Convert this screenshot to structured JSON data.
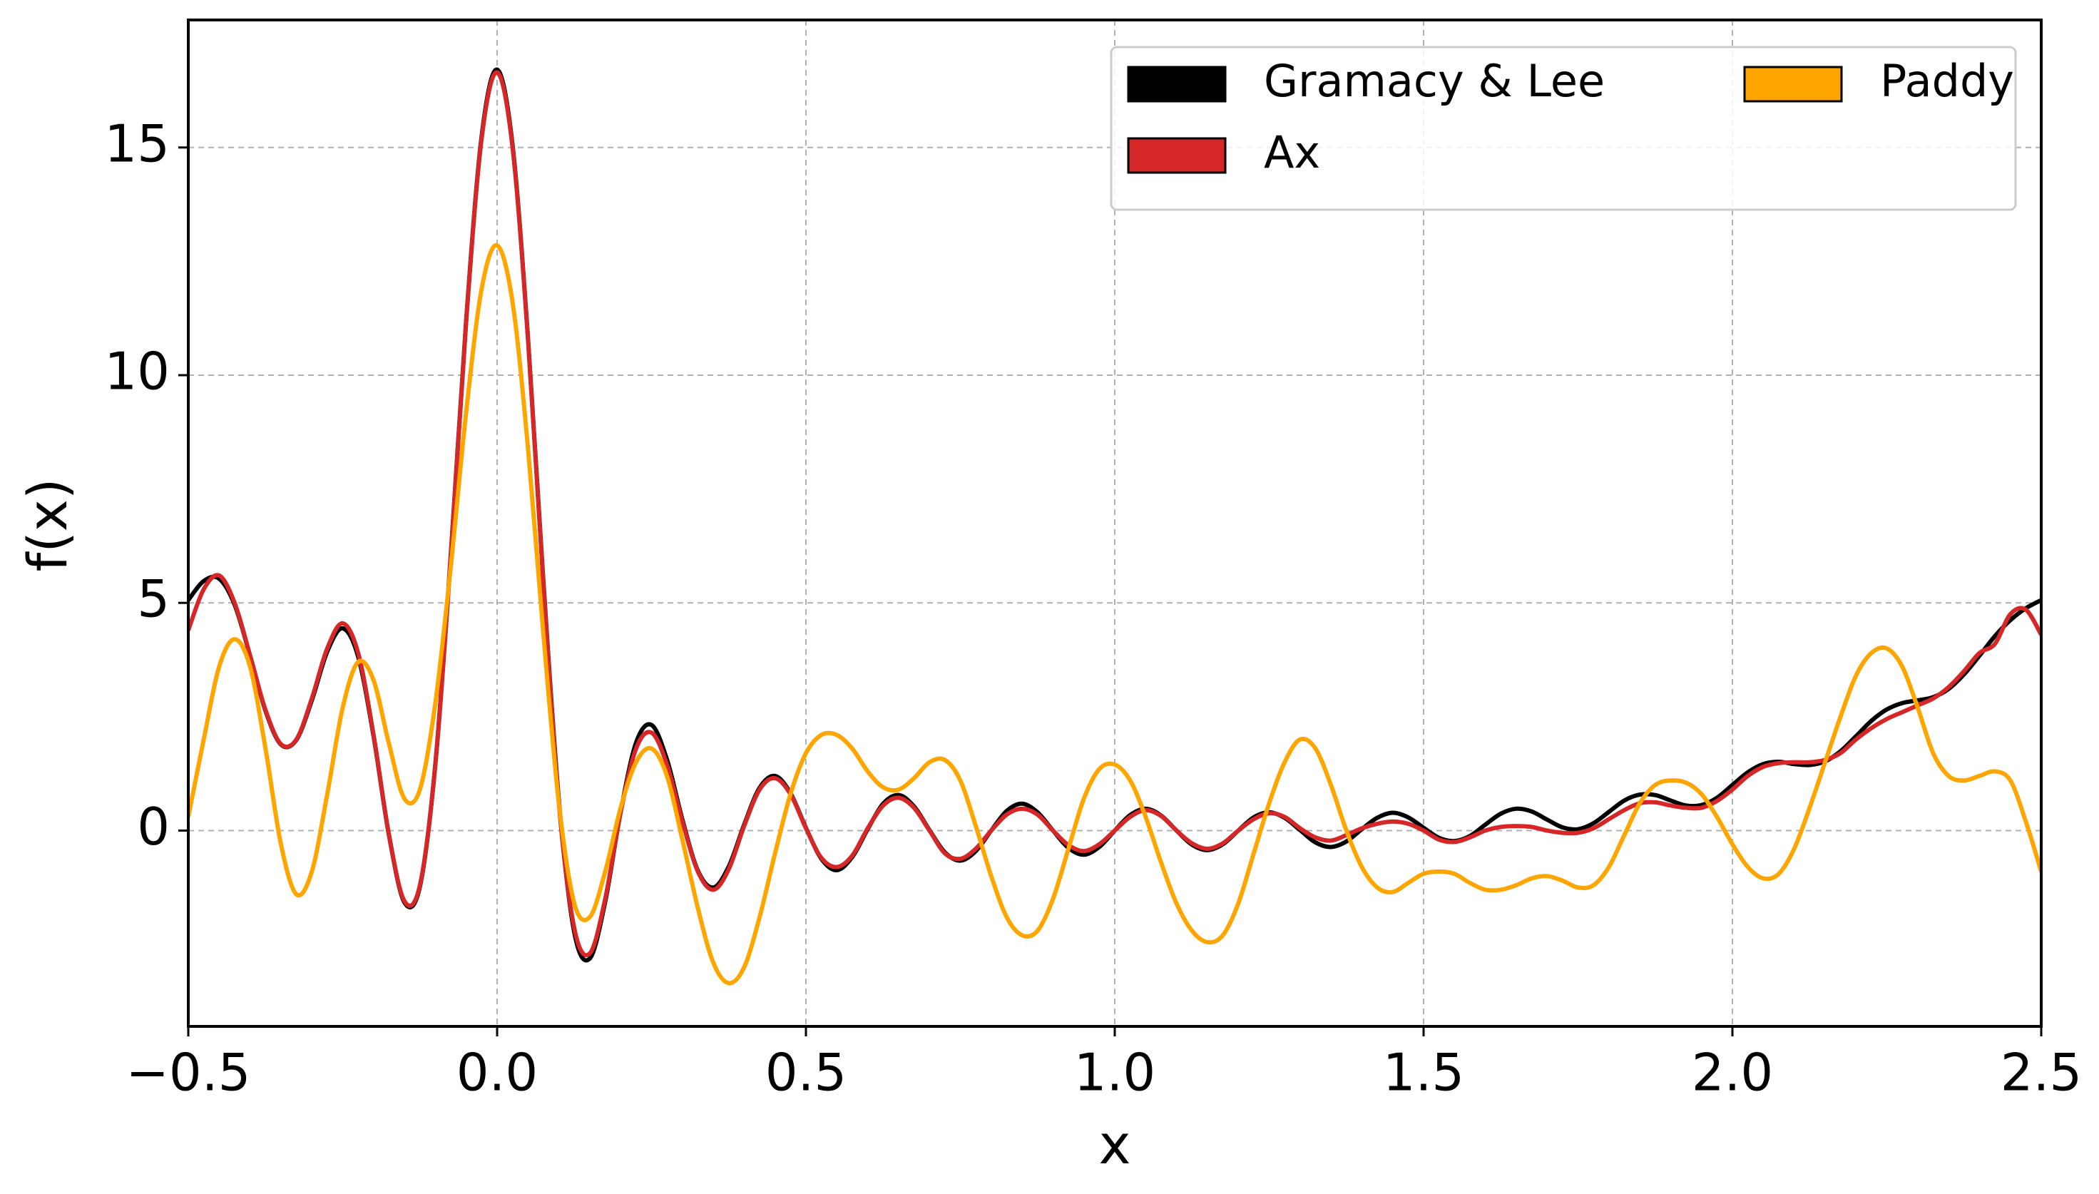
{
  "chart_data": {
    "type": "line",
    "x_label": "x",
    "y_label": "f(x)",
    "x": [
      -0.5,
      -0.475,
      -0.45,
      -0.425,
      -0.4,
      -0.375,
      -0.35,
      -0.325,
      -0.3,
      -0.275,
      -0.25,
      -0.225,
      -0.2,
      -0.175,
      -0.15,
      -0.125,
      -0.1,
      -0.075,
      -0.05,
      -0.025,
      0,
      0.025,
      0.05,
      0.075,
      0.1,
      0.125,
      0.15,
      0.175,
      0.2,
      0.225,
      0.25,
      0.275,
      0.3,
      0.325,
      0.35,
      0.375,
      0.4,
      0.425,
      0.45,
      0.475,
      0.5,
      0.525,
      0.55,
      0.575,
      0.6,
      0.625,
      0.65,
      0.675,
      0.7,
      0.725,
      0.75,
      0.775,
      0.8,
      0.825,
      0.85,
      0.875,
      0.9,
      0.925,
      0.95,
      0.975,
      1.0,
      1.025,
      1.05,
      1.075,
      1.1,
      1.125,
      1.15,
      1.175,
      1.2,
      1.225,
      1.25,
      1.275,
      1.3,
      1.325,
      1.35,
      1.375,
      1.4,
      1.425,
      1.45,
      1.475,
      1.5,
      1.525,
      1.55,
      1.575,
      1.6,
      1.625,
      1.65,
      1.675,
      1.7,
      1.725,
      1.75,
      1.775,
      1.8,
      1.825,
      1.85,
      1.875,
      1.9,
      1.925,
      1.95,
      1.975,
      2.0,
      2.025,
      2.05,
      2.075,
      2.1,
      2.125,
      2.15,
      2.175,
      2.2,
      2.225,
      2.25,
      2.275,
      2.3,
      2.325,
      2.35,
      2.375,
      2.4,
      2.425,
      2.45,
      2.475,
      2.5
    ],
    "series": [
      {
        "name": "Gramacy & Lee",
        "color": "#000000",
        "values": [
          5.06,
          5.48,
          5.53,
          4.96,
          3.84,
          2.63,
          1.89,
          1.99,
          2.86,
          3.93,
          4.44,
          3.82,
          2.07,
          -0.11,
          -1.58,
          -1.23,
          1.46,
          6.05,
          11.22,
          15.25,
          16.71,
          15.05,
          10.81,
          5.45,
          0.66,
          -2.24,
          -2.81,
          -1.56,
          0.41,
          1.93,
          2.32,
          1.56,
          0.24,
          -0.88,
          -1.25,
          -0.79,
          0.13,
          0.94,
          1.2,
          0.82,
          0.06,
          -0.62,
          -0.87,
          -0.58,
          0.03,
          0.59,
          0.78,
          0.53,
          0.01,
          -0.48,
          -0.66,
          -0.45,
          0.0,
          0.43,
          0.59,
          0.4,
          0.0,
          -0.38,
          -0.53,
          -0.36,
          0,
          0.34,
          0.48,
          0.33,
          0,
          -0.31,
          -0.43,
          -0.3,
          0,
          0.29,
          0.4,
          0.28,
          0.01,
          -0.26,
          -0.36,
          -0.24,
          0.03,
          0.28,
          0.39,
          0.29,
          0.06,
          -0.16,
          -0.23,
          -0.12,
          0.13,
          0.37,
          0.48,
          0.42,
          0.24,
          0.07,
          0.03,
          0.16,
          0.41,
          0.66,
          0.79,
          0.78,
          0.66,
          0.55,
          0.56,
          0.72,
          1.0,
          1.28,
          1.46,
          1.51,
          1.46,
          1.44,
          1.52,
          1.74,
          2.07,
          2.41,
          2.66,
          2.8,
          2.86,
          2.93,
          3.11,
          3.43,
          3.84,
          4.27,
          4.62,
          4.88,
          5.06
        ]
      },
      {
        "name": "Ax",
        "color": "#d62728",
        "values": [
          4.4,
          5.3,
          5.6,
          5.0,
          3.85,
          2.65,
          1.9,
          2.0,
          2.9,
          4.0,
          4.55,
          3.9,
          2.1,
          -0.1,
          -1.55,
          -1.2,
          1.45,
          6.0,
          11.2,
          15.2,
          16.65,
          15.0,
          10.8,
          5.4,
          0.6,
          -2.15,
          -2.7,
          -1.5,
          0.4,
          1.8,
          2.15,
          1.45,
          0.2,
          -0.9,
          -1.3,
          -0.85,
          0.1,
          0.9,
          1.15,
          0.8,
          0.05,
          -0.6,
          -0.8,
          -0.55,
          0.05,
          0.55,
          0.72,
          0.5,
          0.0,
          -0.5,
          -0.62,
          -0.4,
          0.0,
          0.35,
          0.48,
          0.35,
          0.0,
          -0.32,
          -0.45,
          -0.3,
          0.0,
          0.3,
          0.45,
          0.32,
          0.0,
          -0.28,
          -0.4,
          -0.28,
          0.0,
          0.25,
          0.38,
          0.3,
          0.05,
          -0.15,
          -0.22,
          -0.1,
          0.05,
          0.15,
          0.2,
          0.15,
          0.0,
          -0.2,
          -0.25,
          -0.15,
          0.0,
          0.08,
          0.1,
          0.08,
          0.0,
          -0.05,
          -0.05,
          0.05,
          0.25,
          0.45,
          0.6,
          0.62,
          0.55,
          0.5,
          0.5,
          0.65,
          0.9,
          1.2,
          1.4,
          1.48,
          1.5,
          1.5,
          1.55,
          1.7,
          2.0,
          2.25,
          2.45,
          2.6,
          2.75,
          2.9,
          3.15,
          3.5,
          3.9,
          4.1,
          4.75,
          4.85,
          4.3
        ]
      },
      {
        "name": "Paddy",
        "color": "#ffa500",
        "values": [
          0.3,
          2.0,
          3.6,
          4.2,
          3.6,
          1.8,
          -0.3,
          -1.4,
          -0.9,
          0.8,
          2.7,
          3.7,
          3.3,
          1.9,
          0.7,
          0.9,
          2.8,
          5.8,
          9.2,
          11.9,
          12.85,
          11.6,
          8.4,
          4.3,
          0.6,
          -1.6,
          -1.9,
          -0.9,
          0.5,
          1.5,
          1.8,
          1.2,
          -0.2,
          -1.7,
          -2.9,
          -3.35,
          -3.0,
          -1.9,
          -0.5,
          0.8,
          1.7,
          2.1,
          2.1,
          1.8,
          1.3,
          0.95,
          0.9,
          1.15,
          1.5,
          1.55,
          1.1,
          0.1,
          -1.0,
          -1.9,
          -2.3,
          -2.2,
          -1.5,
          -0.4,
          0.7,
          1.35,
          1.45,
          1.1,
          0.3,
          -0.7,
          -1.6,
          -2.2,
          -2.45,
          -2.3,
          -1.6,
          -0.5,
          0.6,
          1.5,
          2.0,
          1.8,
          1.0,
          0.0,
          -0.8,
          -1.25,
          -1.35,
          -1.15,
          -0.95,
          -0.9,
          -0.95,
          -1.15,
          -1.3,
          -1.3,
          -1.2,
          -1.05,
          -1.0,
          -1.1,
          -1.25,
          -1.2,
          -0.8,
          -0.1,
          0.6,
          1.0,
          1.1,
          1.05,
          0.8,
          0.3,
          -0.3,
          -0.8,
          -1.05,
          -0.95,
          -0.4,
          0.5,
          1.5,
          2.5,
          3.4,
          3.9,
          4.0,
          3.6,
          2.7,
          1.7,
          1.2,
          1.1,
          1.2,
          1.3,
          1.1,
          0.2,
          -0.9
        ]
      }
    ],
    "xlim": [
      -0.5,
      2.5
    ],
    "ylim": [
      -4.3,
      17.8
    ],
    "xticks": [
      {
        "value": -0.5,
        "label": "−0.5"
      },
      {
        "value": 0,
        "label": "0.0"
      },
      0.5,
      {
        "value": 1,
        "label": "1.0"
      },
      1.5,
      {
        "value": 2,
        "label": "2.0"
      },
      2.5
    ],
    "yticks": [
      0,
      5,
      10,
      15
    ],
    "grid": true,
    "legend": "upper right"
  }
}
